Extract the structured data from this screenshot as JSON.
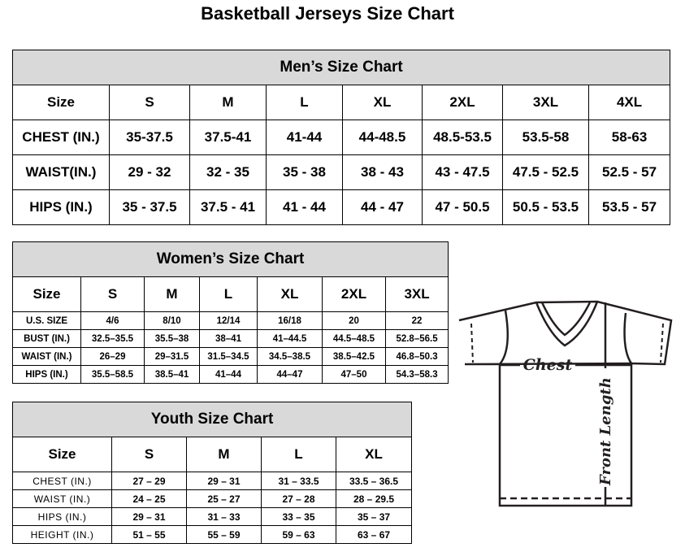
{
  "title": "Basketball Jerseys Size Chart",
  "men": {
    "heading": "Men’s Size Chart",
    "widths": [
      119,
      99,
      94,
      94,
      98,
      99,
      106,
      100
    ],
    "header": [
      "Size",
      "S",
      "M",
      "L",
      "XL",
      "2XL",
      "3XL",
      "4XL"
    ],
    "rows": [
      [
        "CHEST (IN.)",
        "35-37.5",
        "37.5-41",
        "41-44",
        "44-48.5",
        "48.5-53.5",
        "53.5-58",
        "58-63"
      ],
      [
        "WAIST(IN.)",
        "29 - 32",
        "32 - 35",
        "35 - 38",
        "38 - 43",
        "43 - 47.5",
        "47.5 - 52.5",
        "52.5 - 57"
      ],
      [
        "HIPS (IN.)",
        "35 - 37.5",
        "37.5 - 41",
        "41 - 44",
        "44 - 47",
        "47 - 50.5",
        "50.5 - 53.5",
        "53.5 - 57"
      ]
    ]
  },
  "women": {
    "heading": "Women’s Size Chart",
    "widths": [
      84,
      78,
      68,
      71,
      80,
      78,
      77
    ],
    "header": [
      "Size",
      "S",
      "M",
      "L",
      "XL",
      "2XL",
      "3XL"
    ],
    "rows": [
      [
        "U.S. SIZE",
        "4/6",
        "8/10",
        "12/14",
        "16/18",
        "20",
        "22"
      ],
      [
        "BUST (IN.)",
        "32.5–35.5",
        "35.5–38",
        "38–41",
        "41–44.5",
        "44.5–48.5",
        "52.8–56.5"
      ],
      [
        "WAIST (IN.)",
        "26–29",
        "29–31.5",
        "31.5–34.5",
        "34.5–38.5",
        "38.5–42.5",
        "46.8–50.3"
      ],
      [
        "HIPS (IN.)",
        "35.5–58.5",
        "38.5–41",
        "41–44",
        "44–47",
        "47–50",
        "54.3–58.3"
      ]
    ]
  },
  "youth": {
    "heading": "Youth Size Chart",
    "widths": [
      122,
      92,
      92,
      92,
      93
    ],
    "header": [
      "Size",
      "S",
      "M",
      "L",
      "XL"
    ],
    "rows": [
      [
        "CHEST (IN.)",
        "27 – 29",
        "29 – 31",
        "31 – 33.5",
        "33.5 – 36.5"
      ],
      [
        "WAIST (IN.)",
        "24 – 25",
        "25 – 27",
        "27 – 28",
        "28 – 29.5"
      ],
      [
        "HIPS (IN.)",
        "29 – 31",
        "31 – 33",
        "33 – 35",
        "35 – 37"
      ],
      [
        "HEIGHT (IN.)",
        "51 – 55",
        "55 – 59",
        "59 – 63",
        "63 – 67"
      ]
    ]
  },
  "diagram": {
    "chest_label": "Chest",
    "length_label": "Front Length",
    "line_color": "#231f20"
  }
}
